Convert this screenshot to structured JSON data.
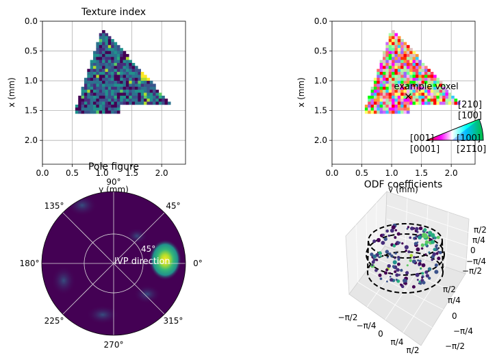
{
  "chart_data": [
    {
      "type": "heatmap",
      "title": "Texture index",
      "xlabel": "y (mm)",
      "ylabel": "x (mm)",
      "xlim": [
        0,
        2.4
      ],
      "ylim": [
        2.4,
        0
      ],
      "xticks": [
        "0.0",
        "0.5",
        "1.0",
        "1.5",
        "2.0"
      ],
      "yticks": [
        "0.0",
        "0.5",
        "1.0",
        "1.5",
        "2.0"
      ],
      "xtick_values": [
        0,
        0.5,
        1.0,
        1.5,
        2.0
      ],
      "ytick_values": [
        0,
        0.5,
        1.0,
        1.5,
        2.0
      ],
      "grid": true,
      "colormap": "viridis",
      "region": {
        "apex": [
          1.0,
          0.1
        ],
        "bottom_left": [
          0.55,
          1.55
        ],
        "bottom_right": [
          2.15,
          1.38
        ]
      },
      "hotspot": [
        1.72,
        0.88
      ]
    },
    {
      "type": "heatmap",
      "title": "",
      "xlabel": "y (mm)",
      "ylabel": "x (mm)",
      "xlim": [
        0,
        2.4
      ],
      "ylim": [
        2.4,
        0
      ],
      "xticks": [
        "0.0",
        "0.5",
        "1.0",
        "1.5",
        "2.0"
      ],
      "yticks": [
        "0.0",
        "0.5",
        "1.0",
        "1.5",
        "2.0"
      ],
      "xtick_values": [
        0,
        0.5,
        1.0,
        1.5,
        2.0
      ],
      "ytick_values": [
        0,
        0.5,
        1.0,
        1.5,
        2.0
      ],
      "grid": true,
      "colormap": "ipf",
      "annotation": {
        "text": "example voxel",
        "marker": "×",
        "x": 1.28,
        "y": 1.26
      },
      "ipf_key_labels": {
        "top": "[210]",
        "top_hex": "[10̅0]",
        "left": "[001]",
        "left_hex": "[0001]",
        "right": "[100]",
        "right_hex": "[21̅10]"
      }
    },
    {
      "type": "heatmap",
      "projection": "polar",
      "title": "Pole figure",
      "angle_labels": [
        "0°",
        "45°",
        "90°",
        "135°",
        "180°",
        "225°",
        "270°",
        "315°"
      ],
      "angle_values": [
        0,
        45,
        90,
        135,
        180,
        225,
        270,
        315
      ],
      "radial_label": "45°",
      "center_label": "IVP direction",
      "colormap": "viridis",
      "hotspot": {
        "angle_deg": 4,
        "radius_fraction": 0.72
      }
    },
    {
      "type": "scatter",
      "projection": "3d",
      "title": "ODF coefficients",
      "x_ticks": [
        "−π/2",
        "−π/4",
        "0",
        "π/4",
        "π/2"
      ],
      "y_ticks": [
        "π/2",
        "π/4",
        "0",
        "−π/4",
        "−π/2"
      ],
      "z_ticks": [
        "π/2",
        "π/4",
        "0",
        "−π/4",
        "−π/2"
      ],
      "colormap": "viridis",
      "boundary": "dashed black"
    }
  ]
}
